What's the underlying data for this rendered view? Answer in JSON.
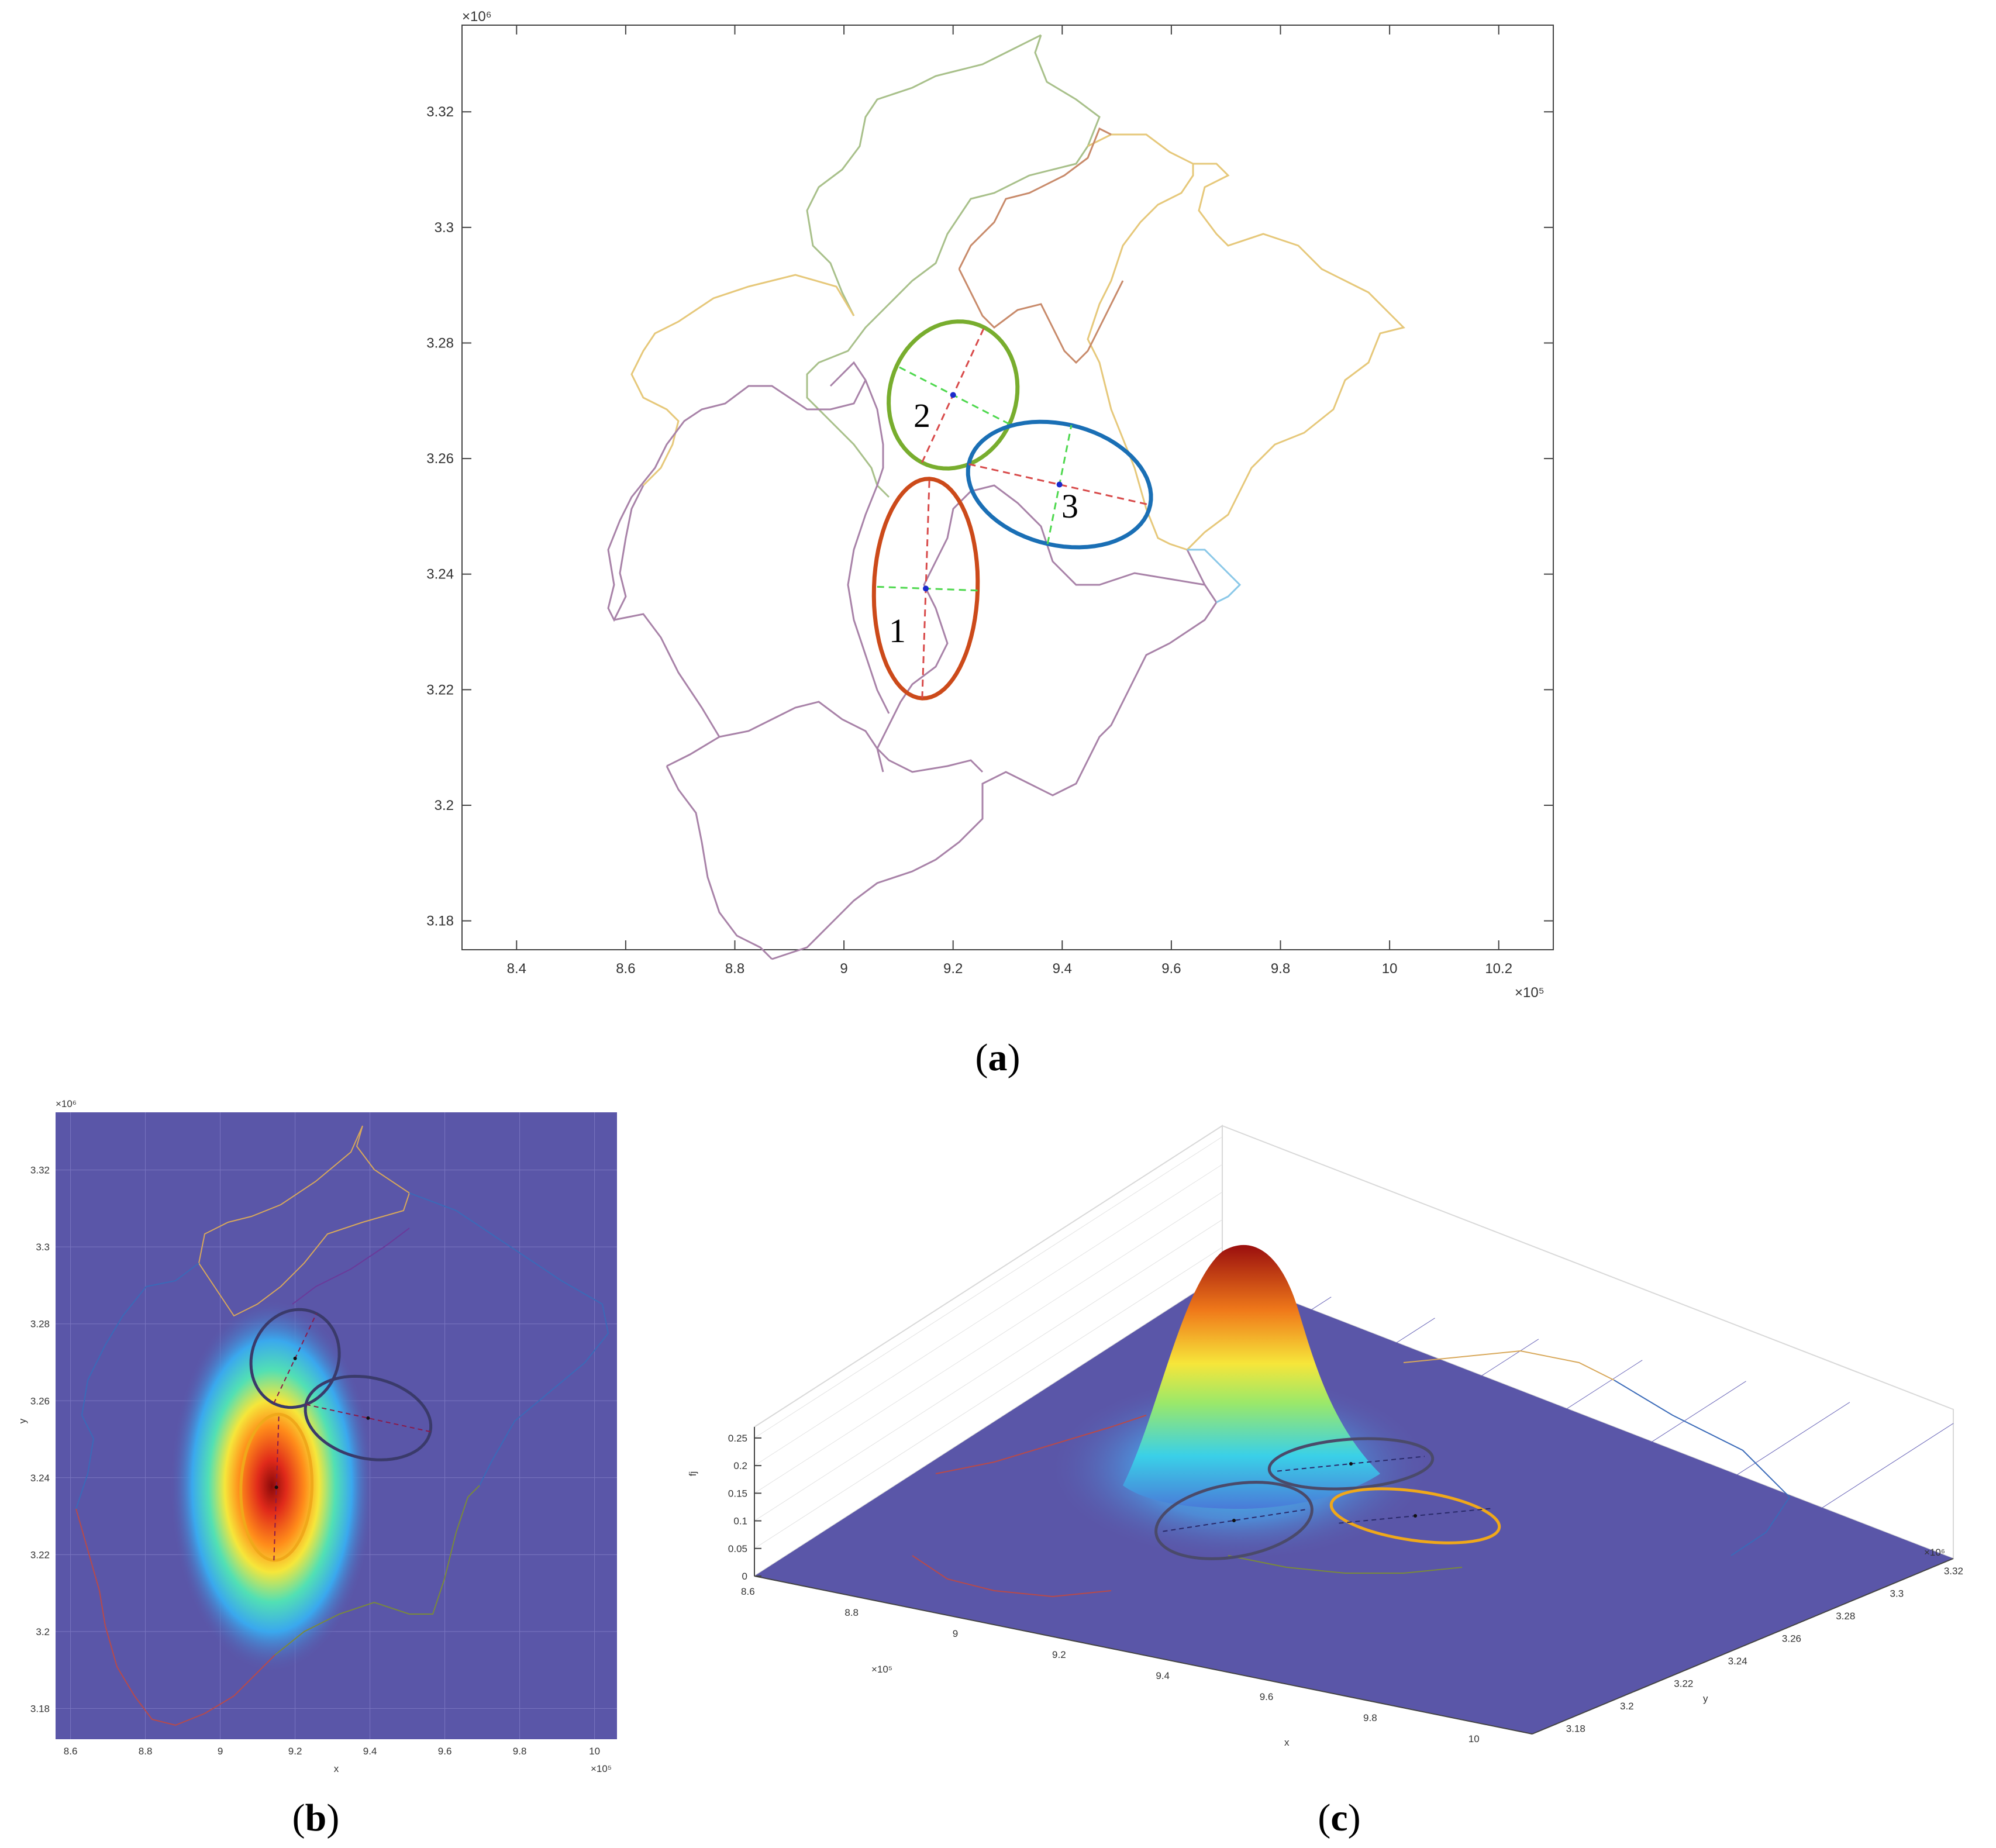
{
  "figure": {
    "panel_a": {
      "y_exponent": "×10⁶",
      "x_exponent": "×10⁵",
      "ellipse_labels": [
        "1",
        "2",
        "3"
      ],
      "caption": {
        "open": "(",
        "letter": "a",
        "close": ")"
      }
    },
    "panel_b": {
      "y_exponent": "×10⁶",
      "x_exponent": "×10⁵",
      "xlabel": "x",
      "ylabel": "y",
      "caption": {
        "open": "(",
        "letter": "b",
        "close": ")"
      }
    },
    "panel_c": {
      "z_ticks": [
        "0",
        "0.05",
        "0.1",
        "0.15",
        "0.2",
        "0.25"
      ],
      "x_ticks": [
        "8.6",
        "8.8",
        "9",
        "9.2",
        "9.4",
        "9.6",
        "9.8",
        "10"
      ],
      "y_ticks": [
        "3.18",
        "3.2",
        "3.22",
        "3.24",
        "3.26",
        "3.28",
        "3.3",
        "3.32"
      ],
      "x_exponent": "×10⁵",
      "y_exponent": "×10⁶",
      "xlabel": "x",
      "ylabel": "y",
      "zlabel": "fj",
      "caption": {
        "open": "(",
        "letter": "c",
        "close": ")"
      }
    }
  },
  "colors": {
    "ellipse_1": "#cc4a1a",
    "ellipse_2": "#78ad2e",
    "ellipse_3": "#1a6fb5",
    "major_axis": "#d84a4a",
    "minor_axis": "#4ed84e",
    "center_point": "#1a2acc",
    "heatmap_background": "#5a56a8",
    "boundary_purple": "#9a6a9a",
    "boundary_yellow": "#e8c46a",
    "boundary_green": "#9ab86a",
    "boundary_brown": "#c87a5a"
  },
  "chart_data": [
    {
      "type": "scatter",
      "panel": "a",
      "title": "",
      "xlabel": "",
      "ylabel": "",
      "xlim": [
        830000,
        1030000
      ],
      "ylim": [
        3175000,
        3335000
      ],
      "x_ticks": [
        "8.4",
        "8.6",
        "8.8",
        "9",
        "9.2",
        "9.4",
        "9.6",
        "9.8",
        "10",
        "10.2"
      ],
      "x_tick_values": [
        840000,
        860000,
        880000,
        900000,
        920000,
        940000,
        960000,
        980000,
        1000000,
        1020000
      ],
      "y_ticks": [
        "3.18",
        "3.2",
        "3.22",
        "3.24",
        "3.26",
        "3.28",
        "3.3",
        "3.32"
      ],
      "y_tick_values": [
        3180000,
        3200000,
        3220000,
        3240000,
        3260000,
        3280000,
        3300000,
        3320000
      ],
      "grid": false,
      "ellipses": [
        {
          "name": "1",
          "center": [
            915000,
            3237500
          ],
          "semi_major": 19000,
          "semi_minor": 9500,
          "orientation_deg": 88
        },
        {
          "name": "2",
          "center": [
            920000,
            3271000
          ],
          "semi_major": 13000,
          "semi_minor": 11500,
          "orientation_deg": 64
        },
        {
          "name": "3",
          "center": [
            939500,
            3255500
          ],
          "semi_major": 17000,
          "semi_minor": 10500,
          "orientation_deg": -12
        }
      ]
    },
    {
      "type": "heatmap",
      "panel": "b",
      "title": "",
      "xlabel": "x",
      "ylabel": "y",
      "xlim": [
        856000,
        1006000
      ],
      "ylim": [
        3172000,
        3335000
      ],
      "x_ticks": [
        "8.6",
        "8.8",
        "9",
        "9.2",
        "9.4",
        "9.6",
        "9.8",
        "10"
      ],
      "x_tick_values": [
        860000,
        880000,
        900000,
        920000,
        940000,
        960000,
        980000,
        1000000
      ],
      "y_ticks": [
        "3.18",
        "3.2",
        "3.22",
        "3.24",
        "3.26",
        "3.28",
        "3.3",
        "3.32"
      ],
      "y_tick_values": [
        3180000,
        3200000,
        3220000,
        3240000,
        3260000,
        3280000,
        3300000,
        3320000
      ],
      "grid": true,
      "peak_center": [
        915000,
        3237500
      ]
    },
    {
      "type": "area",
      "panel": "c",
      "title": "",
      "xlabel": "x",
      "ylabel": "y",
      "zlabel": "fj",
      "xlim": [
        858000,
        1005000
      ],
      "ylim": [
        3175000,
        3335000
      ],
      "zlim": [
        0,
        0.27
      ],
      "peak_value": 0.21
    }
  ]
}
